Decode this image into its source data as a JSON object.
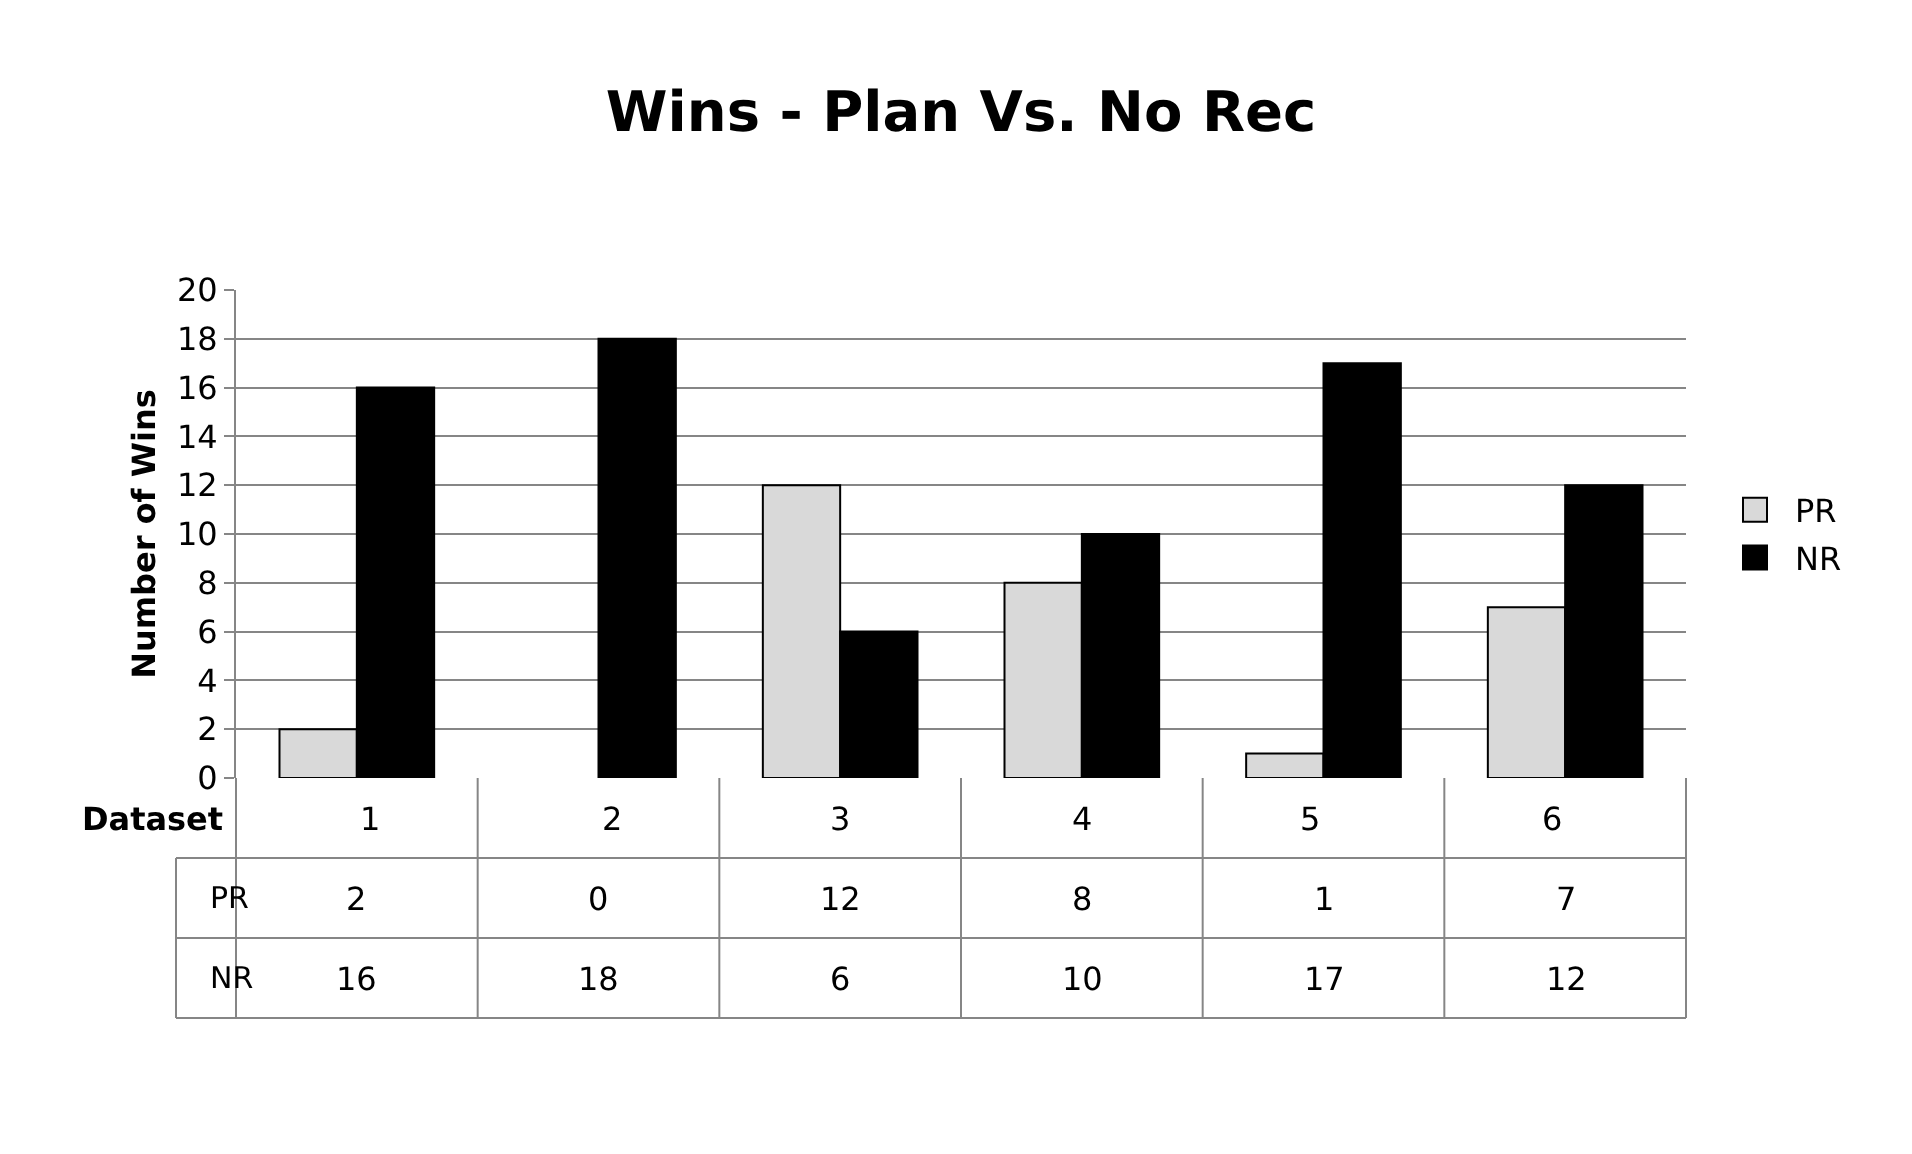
{
  "chart_data": {
    "type": "bar",
    "title": "Wins - Plan Vs. No Rec",
    "xlabel": "Dataset",
    "ylabel": "Number of Wins",
    "categories": [
      "1",
      "2",
      "3",
      "4",
      "5",
      "6"
    ],
    "series": [
      {
        "name": "PR",
        "color": "#d9d9d9",
        "values": [
          2,
          0,
          12,
          8,
          1,
          7
        ]
      },
      {
        "name": "NR",
        "color": "#000000",
        "values": [
          16,
          18,
          6,
          10,
          17,
          12
        ]
      }
    ],
    "ylim": [
      0,
      20
    ],
    "yticks": [
      0,
      2,
      4,
      6,
      8,
      10,
      12,
      14,
      16,
      18,
      20
    ],
    "grid": "y",
    "legend": "right",
    "data_labels": true
  }
}
